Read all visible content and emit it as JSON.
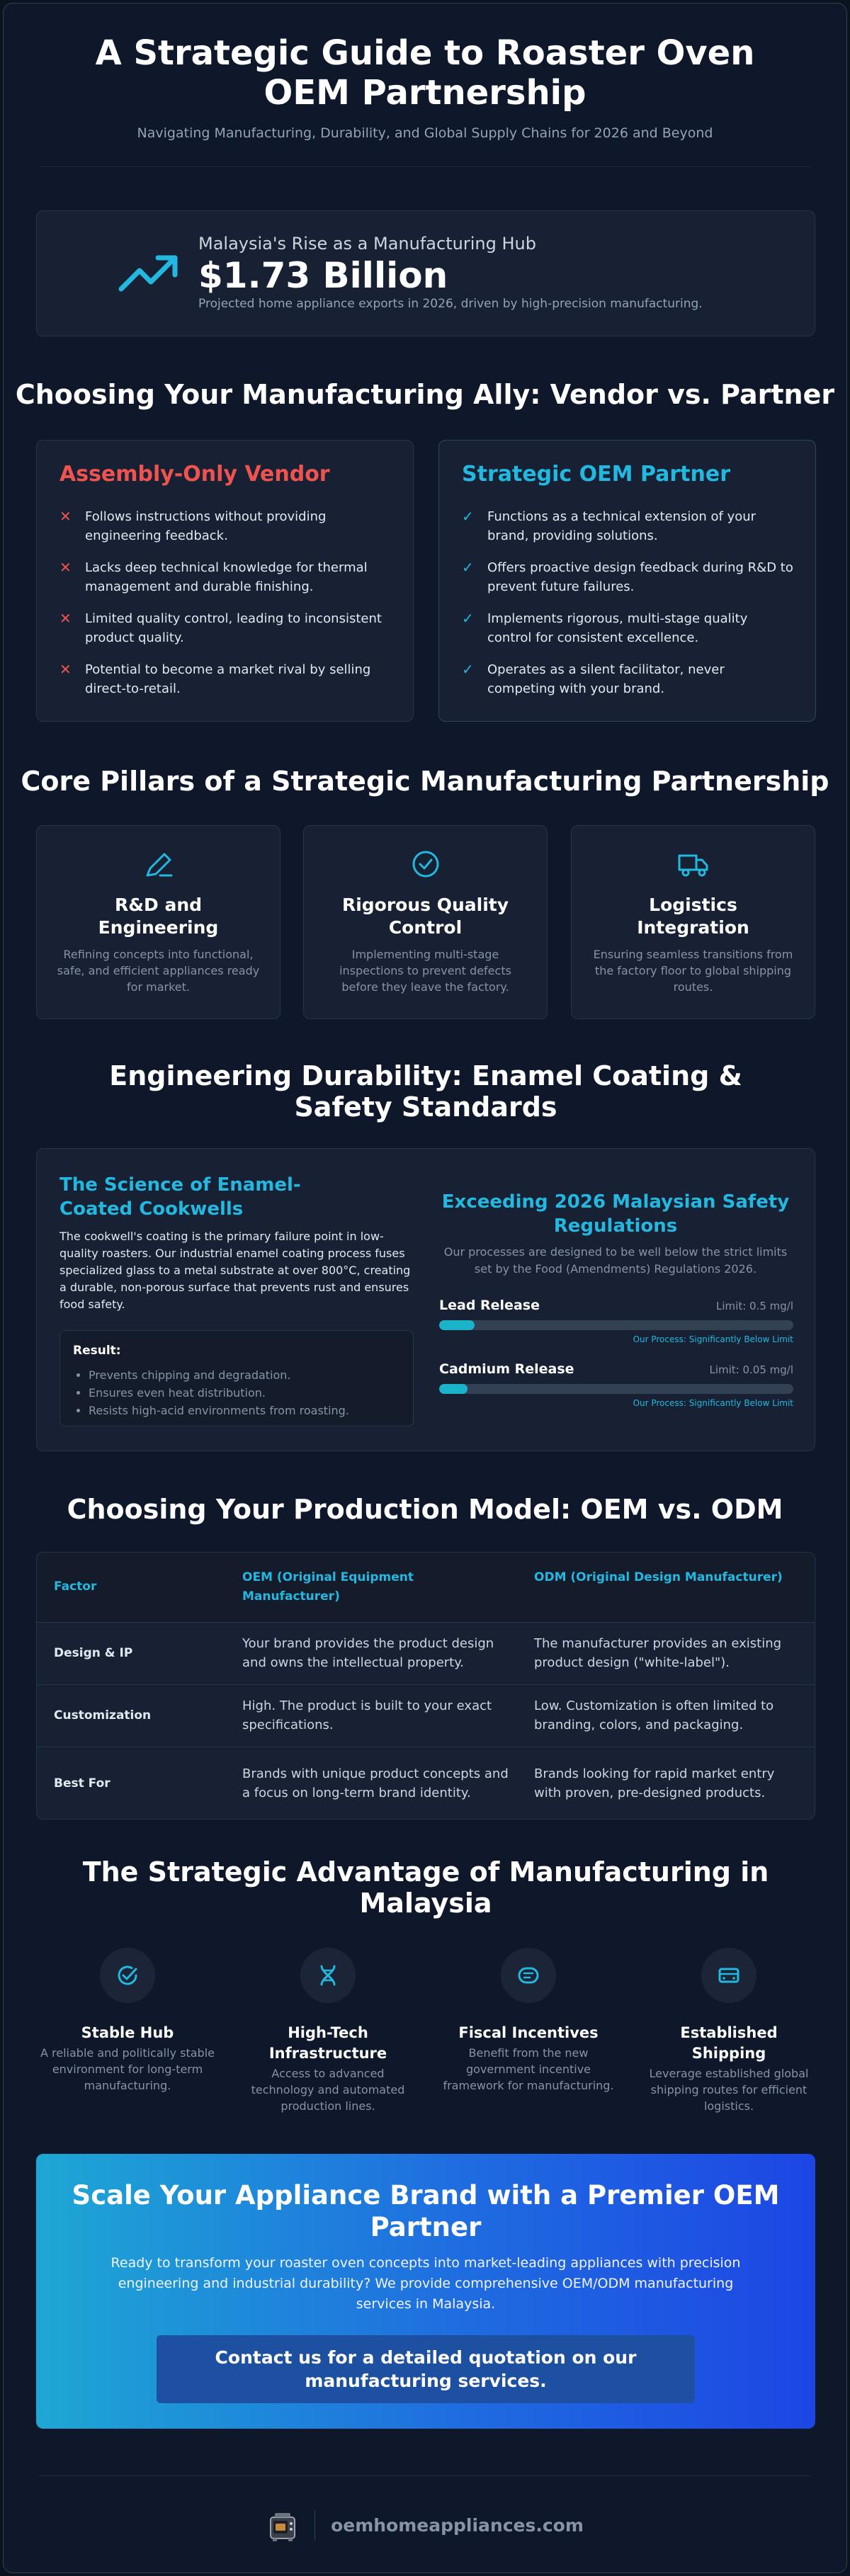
{
  "header": {
    "title": "A Strategic Guide to Roaster Oven OEM Partnership",
    "subtitle": "Navigating Manufacturing, Durability, and Global Supply Chains for 2026 and Beyond"
  },
  "stat": {
    "icon": "trending-up-icon",
    "label": "Malaysia's Rise as a Manufacturing Hub",
    "value": "$1.73 Billion",
    "description": "Projected home appliance exports in 2026, driven by high-precision manufacturing."
  },
  "ally": {
    "title": "Choosing Your Manufacturing Ally: Vendor vs. Partner",
    "vendor": {
      "title": "Assembly-Only Vendor",
      "color": "#ef5350",
      "marker": "✕",
      "items": [
        "Follows instructions without providing engineering feedback.",
        "Lacks deep technical knowledge for thermal management and durable finishing.",
        "Limited quality control, leading to inconsistent product quality.",
        "Potential to become a market rival by selling direct-to-retail."
      ]
    },
    "partner": {
      "title": "Strategic OEM Partner",
      "color": "#22b8e0",
      "marker": "✓",
      "items": [
        "Functions as a technical extension of your brand, providing solutions.",
        "Offers proactive design feedback during R&D to prevent future failures.",
        "Implements rigorous, multi-stage quality control for consistent excellence.",
        "Operates as a silent facilitator, never competing with your brand."
      ]
    }
  },
  "pillars": {
    "title": "Core Pillars of a Strategic Manufacturing Partnership",
    "items": [
      {
        "icon": "pen-icon",
        "title": "R&D and Engineering",
        "text": "Refining concepts into functional, safe, and efficient appliances ready for market."
      },
      {
        "icon": "check-circle-icon",
        "title": "Rigorous Quality Control",
        "text": "Implementing multi-stage inspections to prevent defects before they leave the factory."
      },
      {
        "icon": "truck-icon",
        "title": "Logistics Integration",
        "text": "Ensuring seamless transitions from the factory floor to global shipping routes."
      }
    ]
  },
  "durability": {
    "title": "Engineering Durability: Enamel Coating & Safety Standards",
    "left_title": "The Science of Enamel-Coated Cookwells",
    "left_text": "The cookwell's coating is the primary failure point in low-quality roasters. Our industrial enamel coating process fuses specialized glass to a metal substrate at over 800°C, creating a durable, non-porous surface that prevents rust and ensures food safety.",
    "result_title": "Result:",
    "results": [
      "Prevents chipping and degradation.",
      "Ensures even heat distribution.",
      "Resists high-acid environments from roasting."
    ],
    "right_title": "Exceeding 2026 Malaysian Safety Regulations",
    "right_text": "Our processes are designed to be well below the strict limits set by the Food (Amendments) Regulations 2026.",
    "meters": [
      {
        "name": "Lead Release",
        "limit": "Limit: 0.5 mg/l",
        "level": 0.1,
        "note": "Our Process: Significantly Below Limit"
      },
      {
        "name": "Cadmium Release",
        "limit": "Limit: 0.05 mg/l",
        "level": 0.08,
        "note": "Our Process: Significantly Below Limit"
      }
    ]
  },
  "model": {
    "title": "Choosing Your Production Model: OEM vs. ODM",
    "headers": [
      "Factor",
      "OEM (Original Equipment Manufacturer)",
      "ODM (Original Design Manufacturer)"
    ],
    "rows": [
      [
        "Design & IP",
        "Your brand provides the product design and owns the intellectual property.",
        "The manufacturer provides an existing product design (\"white-label\")."
      ],
      [
        "Customization",
        "High. The product is built to your exact specifications.",
        "Low. Customization is often limited to branding, colors, and packaging."
      ],
      [
        "Best For",
        "Brands with unique product concepts and a focus on long-term brand identity.",
        "Brands looking for rapid market entry with proven, pre-designed products."
      ]
    ]
  },
  "malaysia": {
    "title": "The Strategic Advantage of Manufacturing in Malaysia",
    "items": [
      {
        "icon": "check-badge-icon",
        "title": "Stable Hub",
        "text": "A reliable and politically stable environment for long-term manufacturing."
      },
      {
        "icon": "dna-icon",
        "title": "High-Tech Infrastructure",
        "text": "Access to advanced technology and automated production lines."
      },
      {
        "icon": "tag-icon",
        "title": "Fiscal Incentives",
        "text": "Benefit from the new government incentive framework for manufacturing."
      },
      {
        "icon": "bus-icon",
        "title": "Established Shipping",
        "text": "Leverage established global shipping routes for efficient logistics."
      }
    ]
  },
  "cta": {
    "title": "Scale Your Appliance Brand with a Premier OEM Partner",
    "text": "Ready to transform your roaster oven concepts into market-leading appliances with precision engineering and industrial durability? We provide comprehensive OEM/ODM manufacturing services in Malaysia.",
    "button": "Contact us for a detailed quotation on our manufacturing services."
  },
  "footer": {
    "logo": "roaster-oven-logo",
    "site": "oemhomeappliances.com"
  },
  "colors": {
    "accent": "#22b8e0",
    "negative": "#ef5350",
    "background": "#0f172a"
  }
}
